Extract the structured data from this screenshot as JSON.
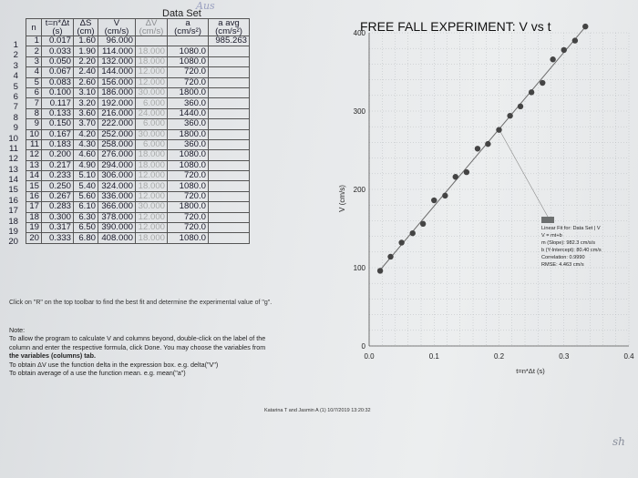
{
  "doodle": "Aus",
  "dataset": {
    "title": "Data Set",
    "headers": {
      "n": "n",
      "t": "t=n*Δt",
      "t_unit": "(s)",
      "s": "ΔS",
      "s_unit": "(cm)",
      "v": "V",
      "v_unit": "(cm/s)",
      "dv": "ΔV",
      "dv_unit": "(cm/s)",
      "a": "a",
      "a_unit": "(cm/s²)",
      "aavg": "a avg",
      "aavg_unit": "(cm/s²)"
    },
    "rows": [
      {
        "i": "1",
        "n": "1",
        "t": "0.017",
        "s": "1.60",
        "v": "96.000",
        "dv": "",
        "a": "",
        "aavg": "985.263"
      },
      {
        "i": "2",
        "n": "2",
        "t": "0.033",
        "s": "1.90",
        "v": "114.000",
        "dv": "18.000",
        "a": "1080.0",
        "aavg": ""
      },
      {
        "i": "3",
        "n": "3",
        "t": "0.050",
        "s": "2.20",
        "v": "132.000",
        "dv": "18.000",
        "a": "1080.0",
        "aavg": ""
      },
      {
        "i": "4",
        "n": "4",
        "t": "0.067",
        "s": "2.40",
        "v": "144.000",
        "dv": "12.000",
        "a": "720.0",
        "aavg": ""
      },
      {
        "i": "5",
        "n": "5",
        "t": "0.083",
        "s": "2.60",
        "v": "156.000",
        "dv": "12.000",
        "a": "720.0",
        "aavg": ""
      },
      {
        "i": "6",
        "n": "6",
        "t": "0.100",
        "s": "3.10",
        "v": "186.000",
        "dv": "30.000",
        "a": "1800.0",
        "aavg": ""
      },
      {
        "i": "7",
        "n": "7",
        "t": "0.117",
        "s": "3.20",
        "v": "192.000",
        "dv": "6.000",
        "a": "360.0",
        "aavg": ""
      },
      {
        "i": "8",
        "n": "8",
        "t": "0.133",
        "s": "3.60",
        "v": "216.000",
        "dv": "24.000",
        "a": "1440.0",
        "aavg": ""
      },
      {
        "i": "9",
        "n": "9",
        "t": "0.150",
        "s": "3.70",
        "v": "222.000",
        "dv": "6.000",
        "a": "360.0",
        "aavg": ""
      },
      {
        "i": "10",
        "n": "10",
        "t": "0.167",
        "s": "4.20",
        "v": "252.000",
        "dv": "30.000",
        "a": "1800.0",
        "aavg": ""
      },
      {
        "i": "11",
        "n": "11",
        "t": "0.183",
        "s": "4.30",
        "v": "258.000",
        "dv": "6.000",
        "a": "360.0",
        "aavg": ""
      },
      {
        "i": "12",
        "n": "12",
        "t": "0.200",
        "s": "4.60",
        "v": "276.000",
        "dv": "18.000",
        "a": "1080.0",
        "aavg": ""
      },
      {
        "i": "13",
        "n": "13",
        "t": "0.217",
        "s": "4.90",
        "v": "294.000",
        "dv": "18.000",
        "a": "1080.0",
        "aavg": ""
      },
      {
        "i": "14",
        "n": "14",
        "t": "0.233",
        "s": "5.10",
        "v": "306.000",
        "dv": "12.000",
        "a": "720.0",
        "aavg": ""
      },
      {
        "i": "15",
        "n": "15",
        "t": "0.250",
        "s": "5.40",
        "v": "324.000",
        "dv": "18.000",
        "a": "1080.0",
        "aavg": ""
      },
      {
        "i": "16",
        "n": "16",
        "t": "0.267",
        "s": "5.60",
        "v": "336.000",
        "dv": "12.000",
        "a": "720.0",
        "aavg": ""
      },
      {
        "i": "17",
        "n": "17",
        "t": "0.283",
        "s": "6.10",
        "v": "366.000",
        "dv": "30.000",
        "a": "1800.0",
        "aavg": ""
      },
      {
        "i": "18",
        "n": "18",
        "t": "0.300",
        "s": "6.30",
        "v": "378.000",
        "dv": "12.000",
        "a": "720.0",
        "aavg": ""
      },
      {
        "i": "19",
        "n": "19",
        "t": "0.317",
        "s": "6.50",
        "v": "390.000",
        "dv": "12.000",
        "a": "720.0",
        "aavg": ""
      },
      {
        "i": "20",
        "n": "20",
        "t": "0.333",
        "s": "6.80",
        "v": "408.000",
        "dv": "18.000",
        "a": "1080.0",
        "aavg": ""
      }
    ]
  },
  "instructions": {
    "click": "Click on \"R\" on the top toolbar to find the best fit and determine the experimental value of \"g\".",
    "note_label": "Note:",
    "note_line1": "To allow the program to calculate V and columns beyond, double-click on the label of the",
    "note_line2": "column and enter the respective formula, click Done. You may choose the variables from",
    "note_line3": "the variables (columns) tab.",
    "note_line4": "To obtain ΔV use the function delta in the expression box. e.g. delta(\"V\")",
    "note_line5": "To obtain average of a use the function mean. e.g. mean(\"a\")"
  },
  "footer": "Katarina T and Jasmin A (1) 10/7/2019 13:20:32",
  "handwriting": "sh",
  "chart_data": {
    "type": "scatter",
    "title": "FREE FALL EXPERIMENT: V vs t",
    "xlabel": "t=n*Δt (s)",
    "ylabel": "V (cm/s)",
    "xlim": [
      0,
      0.4
    ],
    "ylim": [
      0,
      400
    ],
    "xticks": [
      "0.0",
      "0.1",
      "0.2",
      "0.3",
      "0.4"
    ],
    "yticks": [
      "0",
      "100",
      "200",
      "300",
      "400"
    ],
    "grid": true,
    "x": [
      0.017,
      0.033,
      0.05,
      0.067,
      0.083,
      0.1,
      0.117,
      0.133,
      0.15,
      0.167,
      0.183,
      0.2,
      0.217,
      0.233,
      0.25,
      0.267,
      0.283,
      0.3,
      0.317,
      0.333
    ],
    "y": [
      96,
      114,
      132,
      144,
      156,
      186,
      192,
      216,
      222,
      252,
      258,
      276,
      294,
      306,
      324,
      336,
      366,
      378,
      390,
      408
    ],
    "fit": {
      "slope": 982.3,
      "intercept": 80.4
    },
    "fit_box": {
      "line1": "Linear Fit for: Data Set | V",
      "line2": "V = mt+b",
      "line3": "m (Slope): 982.3 cm/s/s",
      "line4": "b (Y-Intercept): 80.40 cm/s",
      "line5": "Correlation: 0.9990",
      "line6": "RMSE: 4.463 cm/s"
    },
    "colors": {
      "points": "#444444",
      "fit_line": "#6b6b6b"
    }
  }
}
